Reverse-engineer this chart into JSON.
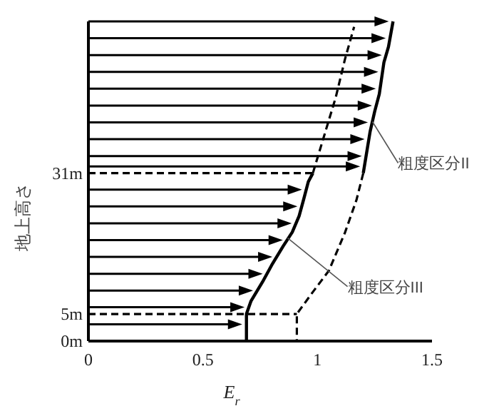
{
  "chart_data": {
    "type": "line",
    "xlabel": "E$_{r}$",
    "ylabel": "地上高さ",
    "xlim": [
      0,
      1.5
    ],
    "xticks": [
      0,
      0.5,
      1,
      1.5
    ],
    "ylim": [
      0,
      59
    ],
    "yticks": [
      {
        "value": 0,
        "label": "0m"
      },
      {
        "value": 5,
        "label": "5m"
      },
      {
        "value": 31,
        "label": "31m"
      }
    ],
    "series": [
      {
        "line_style": "solid",
        "color": "#000000",
        "x": [
          0.69,
          0.69,
          0.71,
          0.76,
          0.8,
          0.85,
          0.89,
          0.92,
          0.94,
          0.96,
          0.98
        ],
        "values": [
          0,
          5,
          7.4,
          10.9,
          14,
          17.5,
          20.1,
          23.1,
          26.2,
          29.4,
          31
        ]
      },
      {
        "line_style": "dashed",
        "color": "#000000",
        "x": [
          0.98,
          1.03,
          1.08,
          1.12,
          1.16
        ],
        "values": [
          31,
          38,
          45,
          52,
          58
        ]
      },
      {
        "line_style": "solid",
        "color": "#000000",
        "x": [
          1.2,
          1.23,
          1.25,
          1.27,
          1.29,
          1.31,
          1.33
        ],
        "values": [
          31,
          38.7,
          42.4,
          45.6,
          51.4,
          54.3,
          59
        ]
      },
      {
        "line_style": "dashed",
        "color": "#000000",
        "x": [
          1.2,
          1.17,
          1.12,
          1.05,
          0.97,
          0.91,
          0.91
        ],
        "values": [
          31,
          26,
          20,
          13,
          8.5,
          5,
          0
        ]
      },
      {
        "line_style": "dashed",
        "color": "#000000",
        "x": [
          0,
          0.91
        ],
        "values": [
          5,
          5
        ]
      },
      {
        "line_style": "dashed",
        "color": "#000000",
        "x": [
          0,
          0.98
        ],
        "values": [
          31,
          31
        ]
      }
    ],
    "annotations": [
      {
        "text": "粗度区分II",
        "x": 1.24,
        "y": 40.5
      },
      {
        "text": "粗度区分III",
        "x": 0.87,
        "y": 19
      }
    ]
  }
}
